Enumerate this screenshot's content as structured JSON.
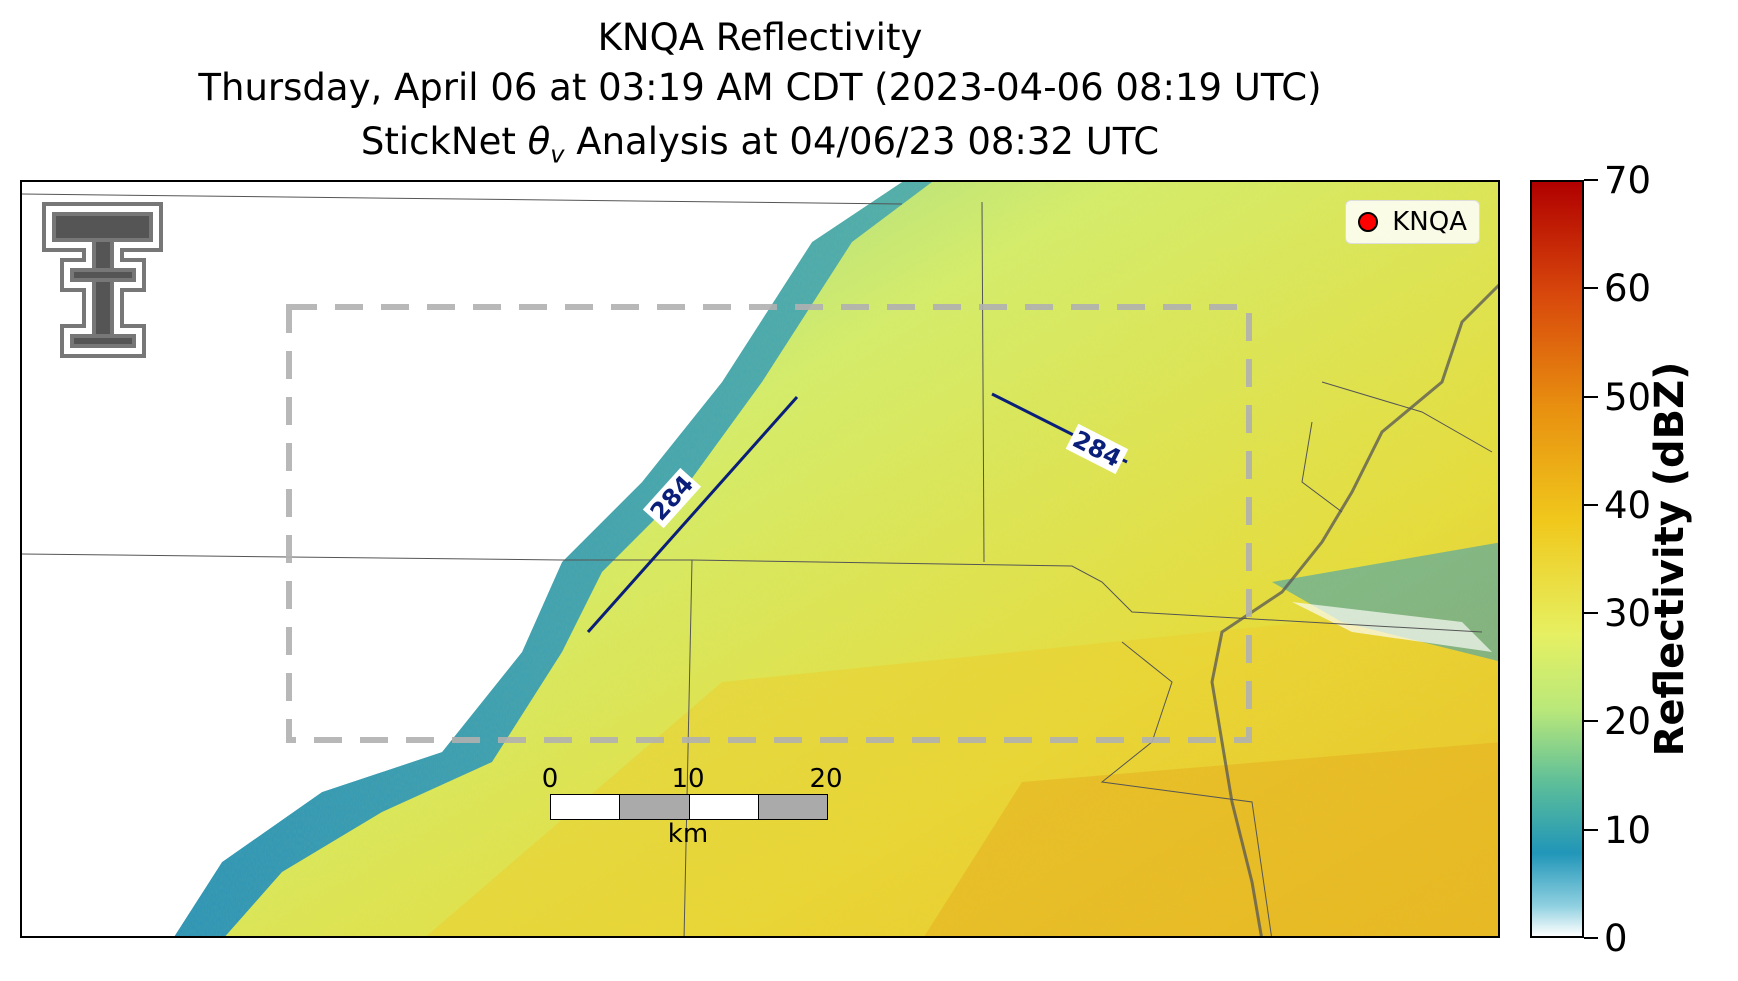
{
  "title": {
    "line1": "KNQA Reflectivity",
    "line2": "Thursday, April 06 at 03:19 AM CDT (2023-04-06 08:19 UTC)",
    "line3": "StickNet θv Analysis at 04/06/23 08:32 UTC"
  },
  "legend": {
    "station": "KNQA",
    "marker_color": "#ff0000"
  },
  "contours": [
    {
      "label": "284"
    },
    {
      "label": "284"
    }
  ],
  "colorbar": {
    "title": "Reflectivity (dBZ)",
    "ticks": [
      "0",
      "10",
      "20",
      "30",
      "40",
      "50",
      "60",
      "70"
    ],
    "range": [
      0,
      70
    ]
  },
  "scalebar": {
    "ticks": [
      "0",
      "10",
      "20"
    ],
    "unit": "km"
  },
  "logo": {
    "name": "texas-tech-double-t-logo"
  },
  "colors": {
    "contour": "#0a1f7a",
    "analysis_box": "#b0b0b0",
    "river": "#555555"
  }
}
